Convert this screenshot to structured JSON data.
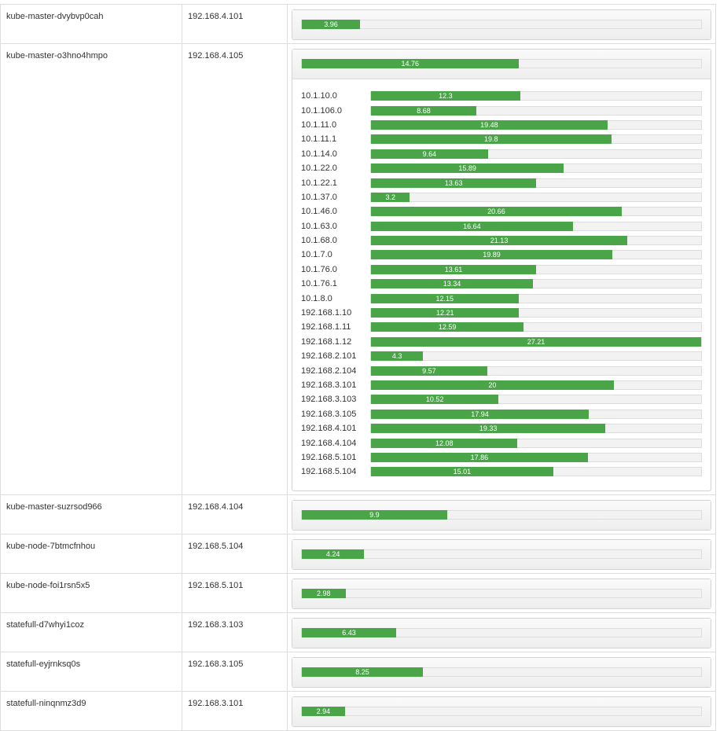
{
  "colors": {
    "bar_fill": "#4aa549",
    "bar_track": "#f2f2f2",
    "border": "#dddddd"
  },
  "scale_max": 27.21,
  "nodes": [
    {
      "name": "kube-master-dvybvp0cah",
      "ip": "192.168.4.101",
      "value": 3.96,
      "label": "3.96",
      "peers": []
    },
    {
      "name": "kube-master-o3hno4hmpo",
      "ip": "192.168.4.105",
      "value": 14.76,
      "label": "14.76",
      "peers": [
        {
          "ip": "10.1.10.0",
          "value": 12.3,
          "label": "12.3"
        },
        {
          "ip": "10.1.106.0",
          "value": 8.68,
          "label": "8.68"
        },
        {
          "ip": "10.1.11.0",
          "value": 19.48,
          "label": "19.48"
        },
        {
          "ip": "10.1.11.1",
          "value": 19.8,
          "label": "19.8"
        },
        {
          "ip": "10.1.14.0",
          "value": 9.64,
          "label": "9.64"
        },
        {
          "ip": "10.1.22.0",
          "value": 15.89,
          "label": "15.89"
        },
        {
          "ip": "10.1.22.1",
          "value": 13.63,
          "label": "13.63"
        },
        {
          "ip": "10.1.37.0",
          "value": 3.2,
          "label": "3.2"
        },
        {
          "ip": "10.1.46.0",
          "value": 20.66,
          "label": "20.66"
        },
        {
          "ip": "10.1.63.0",
          "value": 16.64,
          "label": "16.64"
        },
        {
          "ip": "10.1.68.0",
          "value": 21.13,
          "label": "21.13"
        },
        {
          "ip": "10.1.7.0",
          "value": 19.89,
          "label": "19.89"
        },
        {
          "ip": "10.1.76.0",
          "value": 13.61,
          "label": "13.61"
        },
        {
          "ip": "10.1.76.1",
          "value": 13.34,
          "label": "13.34"
        },
        {
          "ip": "10.1.8.0",
          "value": 12.15,
          "label": "12.15"
        },
        {
          "ip": "192.168.1.10",
          "value": 12.21,
          "label": "12.21"
        },
        {
          "ip": "192.168.1.11",
          "value": 12.59,
          "label": "12.59"
        },
        {
          "ip": "192.168.1.12",
          "value": 27.21,
          "label": "27.21"
        },
        {
          "ip": "192.168.2.101",
          "value": 4.3,
          "label": "4.3"
        },
        {
          "ip": "192.168.2.104",
          "value": 9.57,
          "label": "9.57"
        },
        {
          "ip": "192.168.3.101",
          "value": 20,
          "label": "20"
        },
        {
          "ip": "192.168.3.103",
          "value": 10.52,
          "label": "10.52"
        },
        {
          "ip": "192.168.3.105",
          "value": 17.94,
          "label": "17.94"
        },
        {
          "ip": "192.168.4.101",
          "value": 19.33,
          "label": "19.33"
        },
        {
          "ip": "192.168.4.104",
          "value": 12.08,
          "label": "12.08"
        },
        {
          "ip": "192.168.5.101",
          "value": 17.86,
          "label": "17.86"
        },
        {
          "ip": "192.168.5.104",
          "value": 15.01,
          "label": "15.01"
        }
      ]
    },
    {
      "name": "kube-master-suzrsod966",
      "ip": "192.168.4.104",
      "value": 9.9,
      "label": "9.9",
      "peers": []
    },
    {
      "name": "kube-node-7btmcfnhou",
      "ip": "192.168.5.104",
      "value": 4.24,
      "label": "4.24",
      "peers": []
    },
    {
      "name": "kube-node-foi1rsn5x5",
      "ip": "192.168.5.101",
      "value": 2.98,
      "label": "2.98",
      "peers": []
    },
    {
      "name": "statefull-d7whyi1coz",
      "ip": "192.168.3.103",
      "value": 6.43,
      "label": "6.43",
      "peers": []
    },
    {
      "name": "statefull-eyjrnksq0s",
      "ip": "192.168.3.105",
      "value": 8.25,
      "label": "8.25",
      "peers": []
    },
    {
      "name": "statefull-ninqnmz3d9",
      "ip": "192.168.3.101",
      "value": 2.94,
      "label": "2.94",
      "peers": []
    }
  ]
}
